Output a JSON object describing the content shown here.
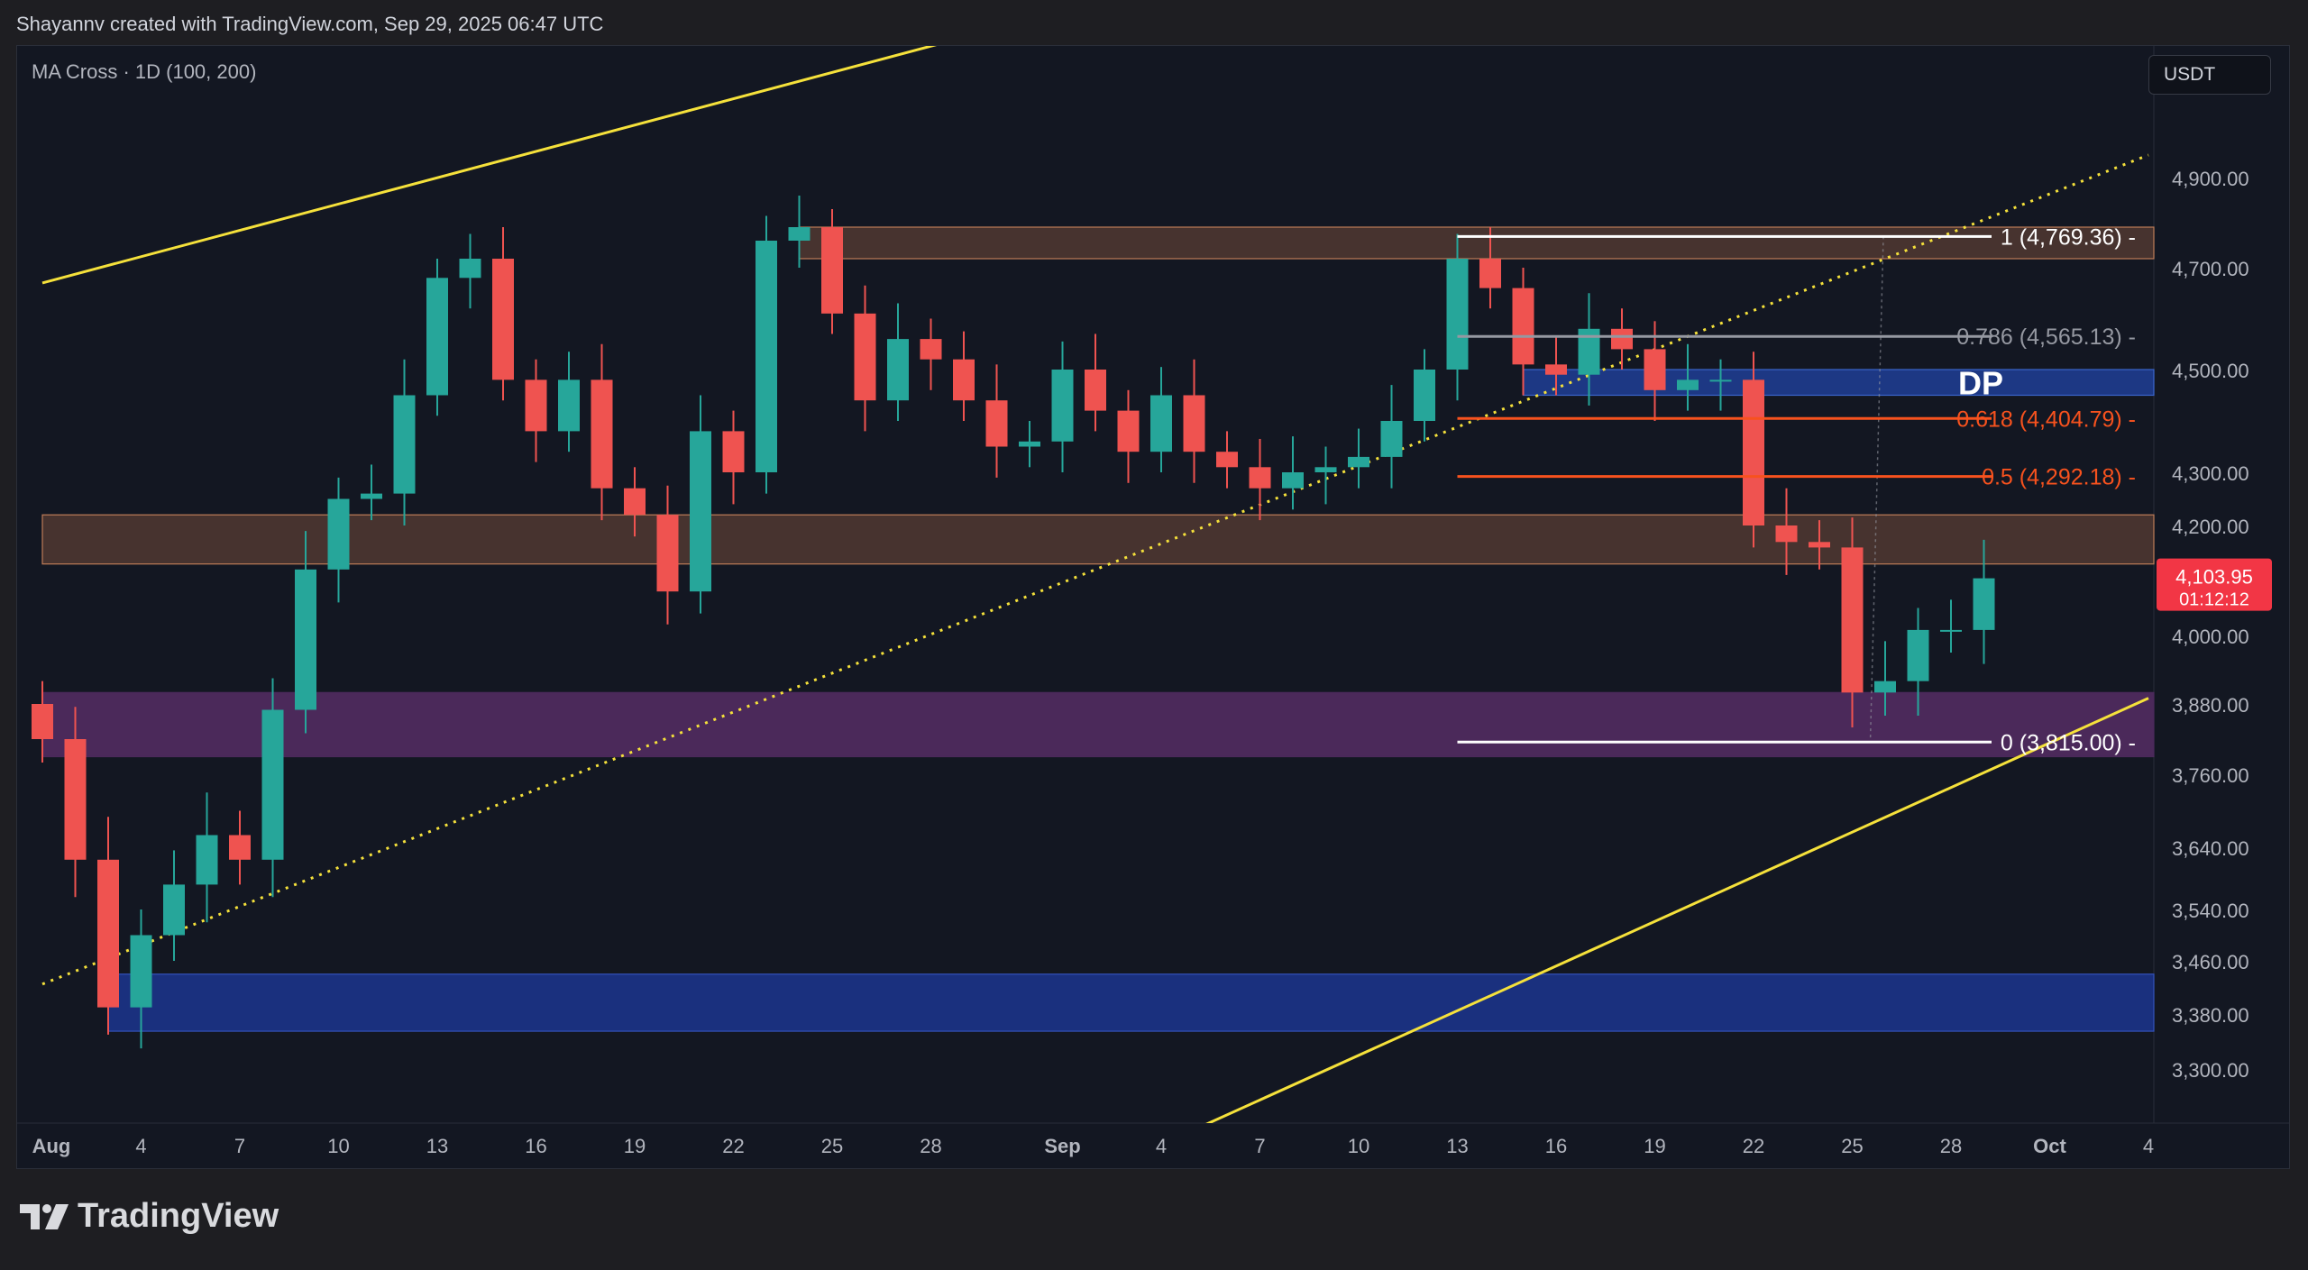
{
  "attribution": "Shayannv created with TradingView.com, Sep 29, 2025 06:47 UTC",
  "indicator": "MA Cross · 1D (100, 200)",
  "currency": "USDT",
  "brand": "TradingView",
  "colors": {
    "up": "#26a69a",
    "down": "#ef5350",
    "channel": "#f5e13b",
    "fib_white": "#ffffff",
    "fib_grey": "#9598a1",
    "fib_orange": "#f7521e",
    "supply_zone": "#4a3530",
    "purple_zone": "#4e2a5e",
    "blue_zone": "#1e3a8a"
  },
  "chart_data": {
    "type": "candlestick",
    "symbol_quote": "USDT",
    "timeframe": "1D",
    "y_ticks": [
      3300,
      3380,
      3460,
      3540,
      3640,
      3760,
      3880,
      4000,
      4200,
      4300,
      4500,
      4700,
      4900
    ],
    "y_tick_labels": [
      "3,300.00",
      "3,380.00",
      "3,460.00",
      "3,540.00",
      "3,640.00",
      "3,760.00",
      "3,880.00",
      "4,000.00",
      "4,200.00",
      "4,300.00",
      "4,500.00",
      "4,700.00",
      "4,900.00"
    ],
    "x_ticks": [
      {
        "label": "Aug",
        "date": "2025-08-01",
        "bold": true
      },
      {
        "label": "4",
        "date": "2025-08-04"
      },
      {
        "label": "7",
        "date": "2025-08-07"
      },
      {
        "label": "10",
        "date": "2025-08-10"
      },
      {
        "label": "13",
        "date": "2025-08-13"
      },
      {
        "label": "16",
        "date": "2025-08-16"
      },
      {
        "label": "19",
        "date": "2025-08-19"
      },
      {
        "label": "22",
        "date": "2025-08-22"
      },
      {
        "label": "25",
        "date": "2025-08-25"
      },
      {
        "label": "28",
        "date": "2025-08-28"
      },
      {
        "label": "Sep",
        "date": "2025-09-01",
        "bold": true
      },
      {
        "label": "4",
        "date": "2025-09-04"
      },
      {
        "label": "7",
        "date": "2025-09-07"
      },
      {
        "label": "10",
        "date": "2025-09-10"
      },
      {
        "label": "13",
        "date": "2025-09-13"
      },
      {
        "label": "16",
        "date": "2025-09-16"
      },
      {
        "label": "19",
        "date": "2025-09-19"
      },
      {
        "label": "22",
        "date": "2025-09-22"
      },
      {
        "label": "25",
        "date": "2025-09-25"
      },
      {
        "label": "28",
        "date": "2025-09-28"
      },
      {
        "label": "Oct",
        "date": "2025-10-01",
        "bold": true
      },
      {
        "label": "4",
        "date": "2025-10-04"
      }
    ],
    "candle_closes": [
      {
        "date": "2025-08-01",
        "close": 3820
      },
      {
        "date": "2025-08-02",
        "close": 3620
      },
      {
        "date": "2025-08-03",
        "close": 3390
      },
      {
        "date": "2025-08-04",
        "close": 3500
      },
      {
        "date": "2025-08-05",
        "close": 3580
      },
      {
        "date": "2025-08-06",
        "close": 3660
      },
      {
        "date": "2025-08-07",
        "close": 3620
      },
      {
        "date": "2025-08-08",
        "close": 3870
      },
      {
        "date": "2025-08-09",
        "close": 4120
      },
      {
        "date": "2025-08-10",
        "close": 4250
      },
      {
        "date": "2025-08-11",
        "close": 4260
      },
      {
        "date": "2025-08-12",
        "close": 4450
      },
      {
        "date": "2025-08-13",
        "close": 4680
      },
      {
        "date": "2025-08-14",
        "close": 4720
      },
      {
        "date": "2025-08-15",
        "close": 4480
      },
      {
        "date": "2025-08-16",
        "close": 4380
      },
      {
        "date": "2025-08-17",
        "close": 4480
      },
      {
        "date": "2025-08-18",
        "close": 4270
      },
      {
        "date": "2025-08-19",
        "close": 4220
      },
      {
        "date": "2025-08-20",
        "close": 4080
      },
      {
        "date": "2025-08-21",
        "close": 4380
      },
      {
        "date": "2025-08-22",
        "close": 4300
      },
      {
        "date": "2025-08-23",
        "close": 4760
      },
      {
        "date": "2025-08-24",
        "close": 4790
      },
      {
        "date": "2025-08-25",
        "close": 4610
      },
      {
        "date": "2025-08-26",
        "close": 4440
      },
      {
        "date": "2025-08-27",
        "close": 4560
      },
      {
        "date": "2025-08-28",
        "close": 4520
      },
      {
        "date": "2025-08-29",
        "close": 4440
      },
      {
        "date": "2025-08-30",
        "close": 4350
      },
      {
        "date": "2025-08-31",
        "close": 4360
      },
      {
        "date": "2025-09-01",
        "close": 4500
      },
      {
        "date": "2025-09-02",
        "close": 4420
      },
      {
        "date": "2025-09-03",
        "close": 4340
      },
      {
        "date": "2025-09-04",
        "close": 4450
      },
      {
        "date": "2025-09-05",
        "close": 4340
      },
      {
        "date": "2025-09-06",
        "close": 4310
      },
      {
        "date": "2025-09-07",
        "close": 4270
      },
      {
        "date": "2025-09-08",
        "close": 4300
      },
      {
        "date": "2025-09-09",
        "close": 4310
      },
      {
        "date": "2025-09-10",
        "close": 4330
      },
      {
        "date": "2025-09-11",
        "close": 4400
      },
      {
        "date": "2025-09-12",
        "close": 4500
      },
      {
        "date": "2025-09-13",
        "close": 4720
      },
      {
        "date": "2025-09-14",
        "close": 4660
      },
      {
        "date": "2025-09-15",
        "close": 4510
      },
      {
        "date": "2025-09-16",
        "close": 4490
      },
      {
        "date": "2025-09-17",
        "close": 4580
      },
      {
        "date": "2025-09-18",
        "close": 4540
      },
      {
        "date": "2025-09-19",
        "close": 4460
      },
      {
        "date": "2025-09-20",
        "close": 4480
      },
      {
        "date": "2025-09-21",
        "close": 4480
      },
      {
        "date": "2025-09-22",
        "close": 4200
      },
      {
        "date": "2025-09-23",
        "close": 4170
      },
      {
        "date": "2025-09-24",
        "close": 4160
      },
      {
        "date": "2025-09-25",
        "close": 3900
      },
      {
        "date": "2025-09-26",
        "close": 3920
      },
      {
        "date": "2025-09-27",
        "close": 4010
      },
      {
        "date": "2025-09-28",
        "close": 4010
      },
      {
        "date": "2025-09-29",
        "close": 4103.95
      }
    ],
    "last_price": "4,103.95",
    "countdown": "01:12:12",
    "fib_levels": [
      {
        "ratio": 1,
        "label": "1 (4,769.36)",
        "value": 4769.36,
        "color": "#ffffff"
      },
      {
        "ratio": 0.786,
        "label": "0.786 (4,565.13)",
        "value": 4565.13,
        "color": "#9598a1"
      },
      {
        "ratio": 0.618,
        "label": "0.618 (4,404.79)",
        "value": 4404.79,
        "color": "#f7521e"
      },
      {
        "ratio": 0.5,
        "label": "0.5 (4,292.18)",
        "value": 4292.18,
        "color": "#f7521e"
      },
      {
        "ratio": 0,
        "label": "0 (3,815.00)",
        "value": 3815.0,
        "color": "#ffffff"
      }
    ],
    "fib_start_date": "2025-09-13",
    "zones": [
      {
        "type": "supply",
        "start_date": "2025-08-24",
        "top": 4790,
        "bottom": 4720
      },
      {
        "type": "supply",
        "start_date": "2025-08-01",
        "top": 4220,
        "bottom": 4130
      },
      {
        "type": "demand",
        "start_date": "2025-08-01",
        "top": 3900,
        "bottom": 3790
      },
      {
        "type": "demand",
        "start_date": "2025-08-03",
        "top": 3440,
        "bottom": 3355
      },
      {
        "type": "dp",
        "start_date": "2025-09-15",
        "top": 4500,
        "bottom": 4450,
        "label": "DP"
      }
    ],
    "trend_lines": [
      {
        "style": "solid",
        "from": {
          "date": "2025-08-01",
          "price": 4670
        },
        "to": {
          "date": "2025-08-31",
          "price": 5250
        }
      },
      {
        "style": "solid",
        "from": {
          "date": "2025-09-04",
          "price": 3190
        },
        "to": {
          "date": "2025-10-04",
          "price": 3890
        }
      },
      {
        "style": "dotted",
        "from": {
          "date": "2025-08-01",
          "price": 3425
        },
        "to": {
          "date": "2025-10-04",
          "price": 4950
        }
      }
    ]
  }
}
